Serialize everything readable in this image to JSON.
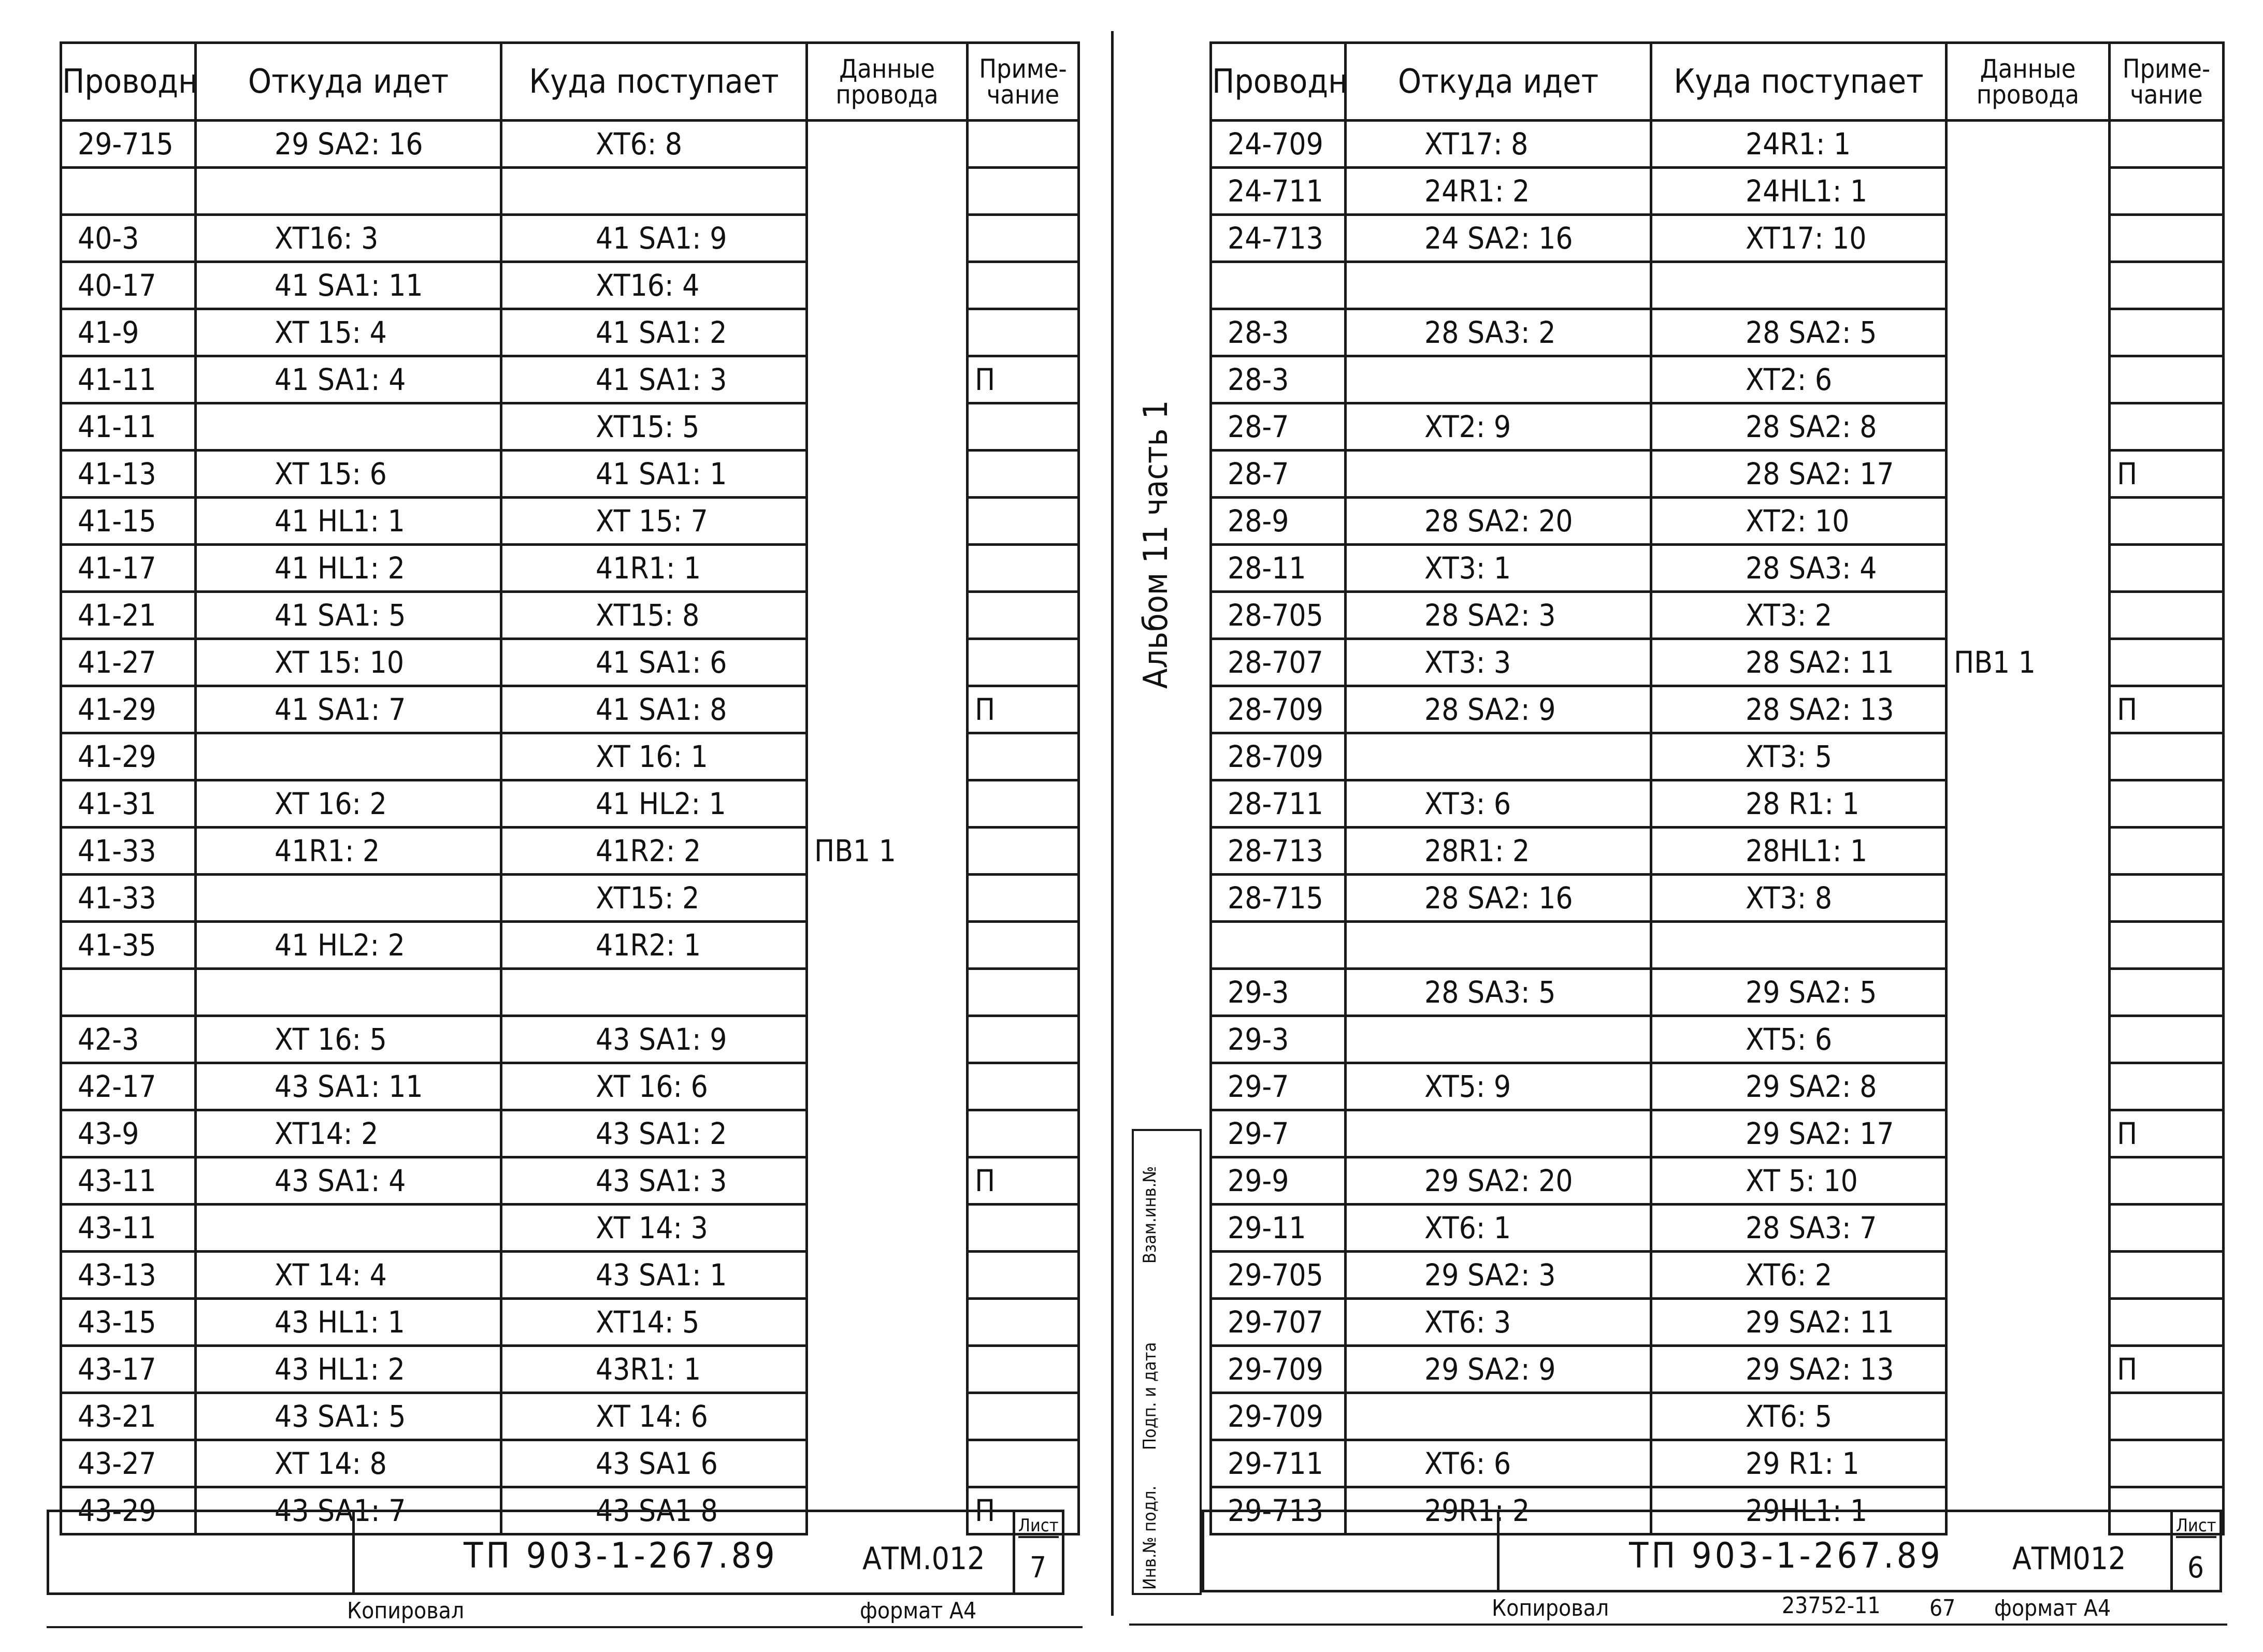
{
  "left": {
    "headers": [
      "Проводник",
      "Откуда идет",
      "Куда поступает",
      "Данные провода",
      "Приме-чание"
    ],
    "rows": [
      [
        "29-715",
        "29 SA2: 16",
        "XT6: 8",
        "",
        ""
      ],
      [
        "",
        "",
        "",
        "",
        ""
      ],
      [
        "40-3",
        "XT16: 3",
        "41 SA1: 9",
        "",
        ""
      ],
      [
        "40-17",
        "41 SA1: 11",
        "XT16: 4",
        "",
        ""
      ],
      [
        "41-9",
        "XT 15: 4",
        "41 SA1: 2",
        "",
        ""
      ],
      [
        "41-11",
        "41 SA1: 4",
        "41 SA1: 3",
        "",
        "П"
      ],
      [
        "41-11",
        "",
        "XT15: 5",
        "",
        ""
      ],
      [
        "41-13",
        "XT 15: 6",
        "41 SA1: 1",
        "",
        ""
      ],
      [
        "41-15",
        "41 HL1: 1",
        "XT 15: 7",
        "",
        ""
      ],
      [
        "41-17",
        "41 HL1: 2",
        "41R1: 1",
        "",
        ""
      ],
      [
        "41-21",
        "41 SA1: 5",
        "XT15: 8",
        "",
        ""
      ],
      [
        "41-27",
        "XT 15: 10",
        "41 SA1: 6",
        "",
        ""
      ],
      [
        "41-29",
        "41 SA1: 7",
        "41 SA1: 8",
        "",
        "П"
      ],
      [
        "41-29",
        "",
        "XT 16: 1",
        "",
        ""
      ],
      [
        "41-31",
        "XT 16: 2",
        "41 HL2: 1",
        "",
        ""
      ],
      [
        "41-33",
        "41R1: 2",
        "41R2: 2",
        "ПВ1   1",
        ""
      ],
      [
        "41-33",
        "",
        "XT15: 2",
        "",
        ""
      ],
      [
        "41-35",
        "41 HL2: 2",
        "41R2: 1",
        "",
        ""
      ],
      [
        "",
        "",
        "",
        "",
        ""
      ],
      [
        "42-3",
        "XT 16: 5",
        "43 SA1: 9",
        "",
        ""
      ],
      [
        "42-17",
        "43 SA1: 11",
        "XT 16: 6",
        "",
        ""
      ],
      [
        "43-9",
        "XT14: 2",
        "43 SA1: 2",
        "",
        ""
      ],
      [
        "43-11",
        "43 SA1: 4",
        "43 SA1: 3",
        "",
        "П"
      ],
      [
        "43-11",
        "",
        "XT 14: 3",
        "",
        ""
      ],
      [
        "43-13",
        "XT 14: 4",
        "43 SA1: 1",
        "",
        ""
      ],
      [
        "43-15",
        "43 HL1: 1",
        "XT14: 5",
        "",
        ""
      ],
      [
        "43-17",
        "43 HL1: 2",
        "43R1: 1",
        "",
        ""
      ],
      [
        "43-21",
        "43 SA1: 5",
        "XT 14: 6",
        "",
        ""
      ],
      [
        "43-27",
        "XT 14: 8",
        "43 SA1 6",
        "",
        ""
      ],
      [
        "43-29",
        "43 SA1: 7",
        "43 SA1 8",
        "",
        "П"
      ]
    ],
    "title_main": "ТП 903-1-267.89",
    "title_code": "АТМ.012",
    "sheet_label": "Лист",
    "sheet_num": "7",
    "copied": "Копировал",
    "format": "формат А4"
  },
  "right": {
    "headers": [
      "Проводник",
      "Откуда идет",
      "Куда поступает",
      "Данные провода",
      "Приме-чание"
    ],
    "rows": [
      [
        "24-709",
        "XT17: 8",
        "24R1: 1",
        "",
        ""
      ],
      [
        "24-711",
        "24R1: 2",
        "24HL1: 1",
        "",
        ""
      ],
      [
        "24-713",
        "24 SA2: 16",
        "XT17: 10",
        "",
        ""
      ],
      [
        "",
        "",
        "",
        "",
        ""
      ],
      [
        "28-3",
        "28 SA3: 2",
        "28 SA2: 5",
        "",
        ""
      ],
      [
        "28-3",
        "",
        "XT2: 6",
        "",
        ""
      ],
      [
        "28-7",
        "XT2: 9",
        "28 SA2: 8",
        "",
        ""
      ],
      [
        "28-7",
        "",
        "28 SA2: 17",
        "",
        "П"
      ],
      [
        "28-9",
        "28 SA2: 20",
        "XT2: 10",
        "",
        ""
      ],
      [
        "28-11",
        "XT3: 1",
        "28 SA3: 4",
        "",
        ""
      ],
      [
        "28-705",
        "28 SA2: 3",
        "XT3: 2",
        "",
        ""
      ],
      [
        "28-707",
        "XT3: 3",
        "28 SA2: 11",
        "ПВ1   1",
        ""
      ],
      [
        "28-709",
        "28 SA2: 9",
        "28 SA2: 13",
        "",
        "П"
      ],
      [
        "28-709",
        "",
        "XT3: 5",
        "",
        ""
      ],
      [
        "28-711",
        "XT3: 6",
        "28 R1: 1",
        "",
        ""
      ],
      [
        "28-713",
        "28R1: 2",
        "28HL1: 1",
        "",
        ""
      ],
      [
        "28-715",
        "28 SA2: 16",
        "XT3: 8",
        "",
        ""
      ],
      [
        "",
        "",
        "",
        "",
        ""
      ],
      [
        "29-3",
        "28 SA3: 5",
        "29 SA2: 5",
        "",
        ""
      ],
      [
        "29-3",
        "",
        "XT5: 6",
        "",
        ""
      ],
      [
        "29-7",
        "XT5: 9",
        "29 SA2: 8",
        "",
        ""
      ],
      [
        "29-7",
        "",
        "29 SA2: 17",
        "",
        "П"
      ],
      [
        "29-9",
        "29 SA2: 20",
        "XT 5: 10",
        "",
        ""
      ],
      [
        "29-11",
        "XT6: 1",
        "28 SA3: 7",
        "",
        ""
      ],
      [
        "29-705",
        "29 SA2: 3",
        "XT6: 2",
        "",
        ""
      ],
      [
        "29-707",
        "XT6: 3",
        "29 SA2: 11",
        "",
        ""
      ],
      [
        "29-709",
        "29 SA2: 9",
        "29 SA2: 13",
        "",
        "П"
      ],
      [
        "29-709",
        "",
        "XT6: 5",
        "",
        ""
      ],
      [
        "29-711",
        "XT6: 6",
        "29 R1: 1",
        "",
        ""
      ],
      [
        "29-713",
        "29R1: 2",
        "29HL1: 1",
        "",
        ""
      ]
    ],
    "title_main": "ТП 903-1-267.89",
    "title_code": "АТМ012",
    "sheet_label": "Лист",
    "sheet_num": "6",
    "copied": "Копировал",
    "doc_number": "23752-11",
    "page_number": "67",
    "format": "формат А4"
  },
  "album_label": "Альбом 11  часть 1",
  "stamps": [
    "Взам.инв.№",
    "Подп. и дата",
    "Инв.№ подл."
  ]
}
